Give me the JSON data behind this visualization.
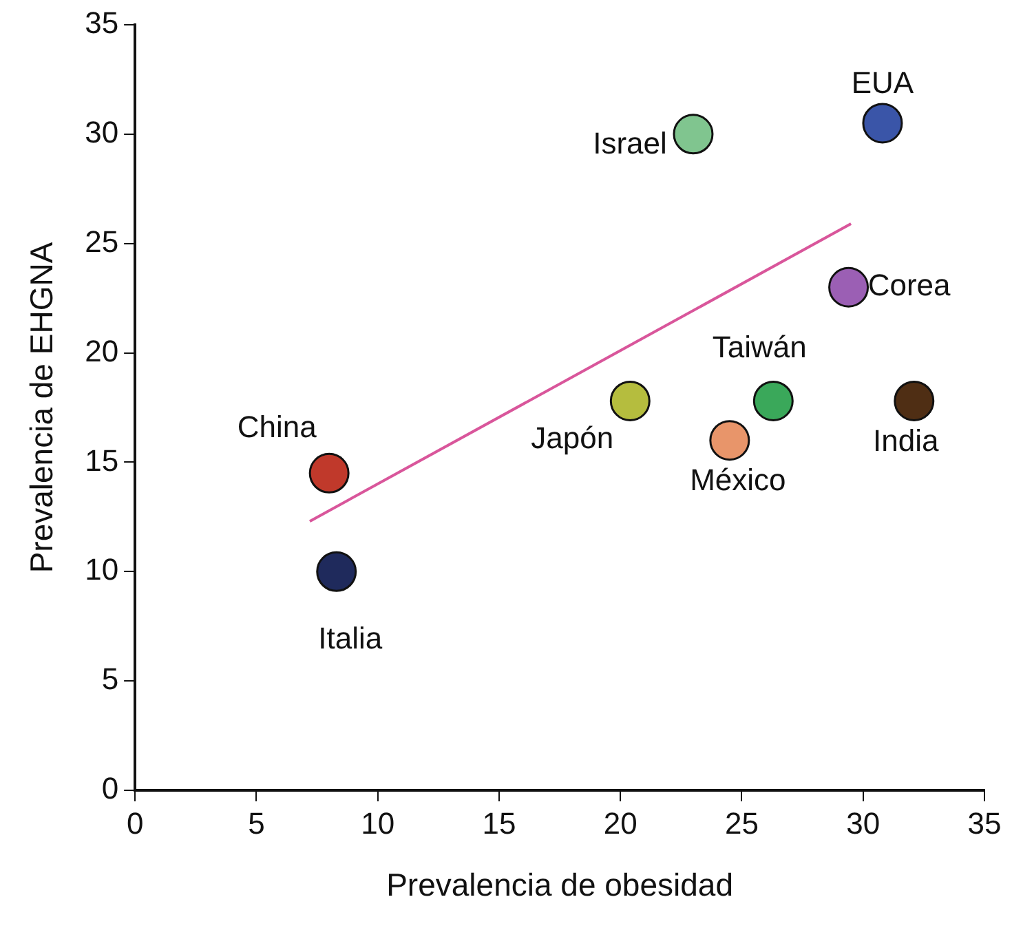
{
  "chart_data": {
    "type": "scatter",
    "xlabel": "Prevalencia de obesidad",
    "ylabel": "Prevalencia de EHGNA",
    "xlim": [
      0,
      35
    ],
    "xticks": [
      0,
      5,
      10,
      15,
      20,
      25,
      30,
      35
    ],
    "ylim": [
      0,
      35
    ],
    "yticks": [
      0,
      5,
      10,
      15,
      20,
      25,
      30,
      35
    ],
    "grid": false,
    "legend": false,
    "marker": "circle",
    "series": [
      {
        "name": "China",
        "color": "#c0392b",
        "x": [
          8
        ],
        "values": [
          14.5
        ]
      },
      {
        "name": "Italia",
        "color": "#1f2a5c",
        "x": [
          8.3
        ],
        "values": [
          10
        ]
      },
      {
        "name": "Israel",
        "color": "#80c58f",
        "x": [
          23
        ],
        "values": [
          30
        ]
      },
      {
        "name": "EUA",
        "color": "#3a55a8",
        "x": [
          30.8
        ],
        "values": [
          30.5
        ]
      },
      {
        "name": "Corea",
        "color": "#9b5fb4",
        "x": [
          29.4
        ],
        "values": [
          23
        ]
      },
      {
        "name": "Japón",
        "color": "#b5bd3e",
        "x": [
          20.4
        ],
        "values": [
          17.8
        ]
      },
      {
        "name": "Taiwán",
        "color": "#3aa85a",
        "x": [
          26.3
        ],
        "values": [
          17.8
        ]
      },
      {
        "name": "México",
        "color": "#e8956a",
        "x": [
          24.5
        ],
        "values": [
          16
        ]
      },
      {
        "name": "India",
        "color": "#4f2e14",
        "x": [
          32.1
        ],
        "values": [
          17.8
        ]
      },
      {
        "type": "line",
        "marker": "none",
        "color": "#d9569b",
        "x": [
          7.2,
          29.5
        ],
        "values": [
          12.3,
          25.9
        ]
      }
    ]
  }
}
